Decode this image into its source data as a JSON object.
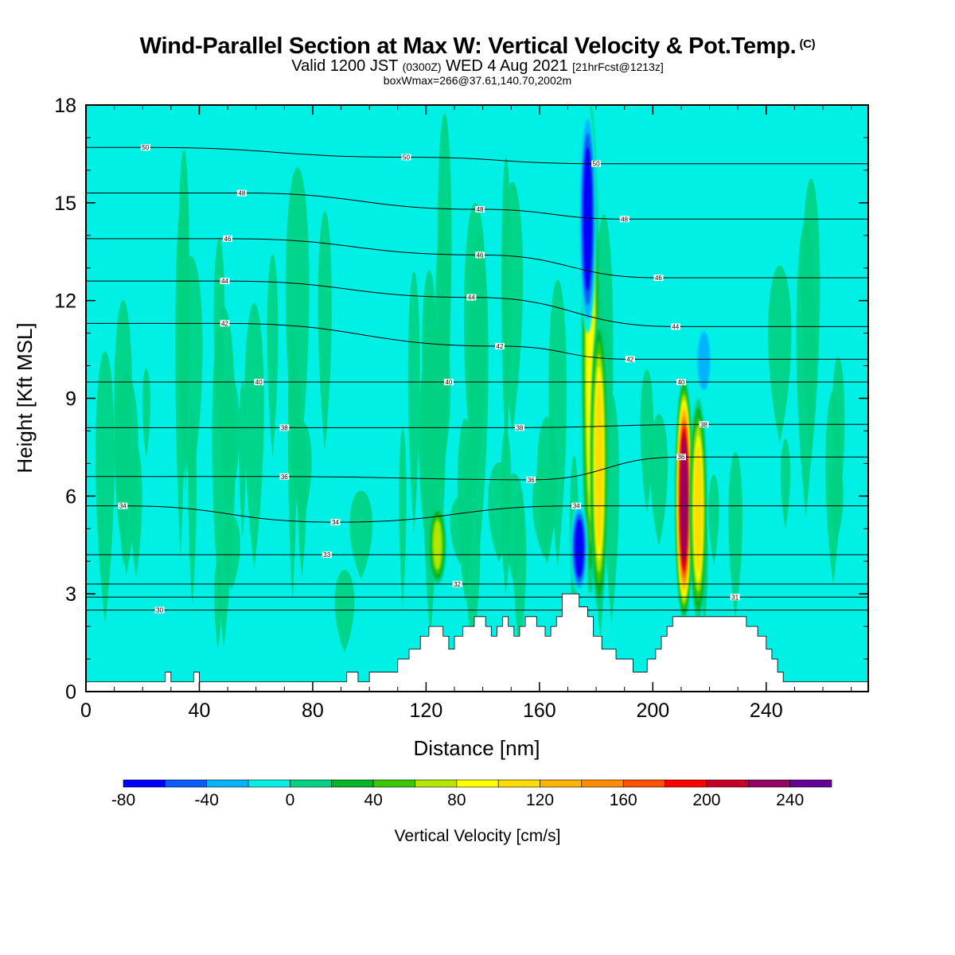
{
  "header": {
    "title": "Wind-Parallel Section at Max W: Vertical Velocity & Pot.Temp.",
    "title_mark": "(C)",
    "valid_prefix": "Valid 1200 JST",
    "valid_utc": "(0300Z)",
    "valid_date": "WED 4 Aug 2021",
    "forecast_info": "[21hrFcst@1213z]",
    "box_info": "boxWmax=266@37.61,140.70,2002m"
  },
  "chart_data": {
    "type": "heatmap",
    "title": "Wind-Parallel Section at Max W: Vertical Velocity & Pot.Temp.",
    "xlabel": "Distance [nm]",
    "ylabel": "Height [Kft MSL]",
    "xlim": [
      0,
      276
    ],
    "ylim": [
      0,
      18
    ],
    "x_ticks": [
      0,
      40,
      80,
      120,
      160,
      200,
      240
    ],
    "y_ticks": [
      0,
      3,
      6,
      9,
      12,
      15,
      18
    ],
    "colorbar": {
      "label": "Vertical Velocity [cm/s]",
      "levels": [
        -80,
        -60,
        -40,
        -20,
        0,
        20,
        40,
        60,
        80,
        100,
        120,
        140,
        160,
        180,
        200,
        220,
        240,
        260
      ],
      "tick_labels": [
        -80,
        -40,
        0,
        40,
        80,
        120,
        160,
        200,
        240
      ],
      "colors": [
        "#0000ff",
        "#0a5cff",
        "#00b4ff",
        "#00f0e6",
        "#00d282",
        "#00b428",
        "#3cc800",
        "#b4e600",
        "#ffff00",
        "#ffdc00",
        "#ffb400",
        "#ff8c00",
        "#ff5000",
        "#ff0000",
        "#c80028",
        "#960064",
        "#640096"
      ]
    },
    "background_value_cm_s": 0,
    "isentrope_labels": [
      {
        "x": 21,
        "y": 16.7,
        "text": "50"
      },
      {
        "x": 113,
        "y": 16.4,
        "text": "50"
      },
      {
        "x": 180,
        "y": 16.2,
        "text": "50"
      },
      {
        "x": 55,
        "y": 15.3,
        "text": "48"
      },
      {
        "x": 139,
        "y": 14.8,
        "text": "48"
      },
      {
        "x": 190,
        "y": 14.5,
        "text": "48"
      },
      {
        "x": 50,
        "y": 13.9,
        "text": "46"
      },
      {
        "x": 139,
        "y": 13.4,
        "text": "46"
      },
      {
        "x": 202,
        "y": 12.7,
        "text": "46"
      },
      {
        "x": 49,
        "y": 12.6,
        "text": "44"
      },
      {
        "x": 136,
        "y": 12.1,
        "text": "44"
      },
      {
        "x": 208,
        "y": 11.2,
        "text": "44"
      },
      {
        "x": 49,
        "y": 11.3,
        "text": "42"
      },
      {
        "x": 146,
        "y": 10.6,
        "text": "42"
      },
      {
        "x": 192,
        "y": 10.2,
        "text": "42"
      },
      {
        "x": 61,
        "y": 9.5,
        "text": "40"
      },
      {
        "x": 128,
        "y": 9.5,
        "text": "40"
      },
      {
        "x": 210,
        "y": 9.5,
        "text": "40"
      },
      {
        "x": 70,
        "y": 8.1,
        "text": "38"
      },
      {
        "x": 153,
        "y": 8.1,
        "text": "38"
      },
      {
        "x": 218,
        "y": 8.2,
        "text": "38"
      },
      {
        "x": 70,
        "y": 6.6,
        "text": "36"
      },
      {
        "x": 157,
        "y": 6.5,
        "text": "36"
      },
      {
        "x": 210,
        "y": 7.2,
        "text": "36"
      },
      {
        "x": 13,
        "y": 5.7,
        "text": "34"
      },
      {
        "x": 88,
        "y": 5.2,
        "text": "34"
      },
      {
        "x": 173,
        "y": 5.7,
        "text": "34"
      },
      {
        "x": 85,
        "y": 4.2,
        "text": "33"
      },
      {
        "x": 131,
        "y": 3.3,
        "text": "32"
      },
      {
        "x": 229,
        "y": 2.9,
        "text": "31"
      },
      {
        "x": 26,
        "y": 2.5,
        "text": "30"
      }
    ],
    "strong_updrafts": [
      {
        "x": 124,
        "y_range": [
          3.3,
          5.7
        ],
        "peak_cm_s": 80
      },
      {
        "x": 178,
        "y_range": [
          3.0,
          18.0
        ],
        "peak_cm_s": 100
      },
      {
        "x": 181,
        "y_range": [
          2.5,
          11.5
        ],
        "peak_cm_s": 120
      },
      {
        "x": 211,
        "y_range": [
          2.2,
          9.6
        ],
        "peak_cm_s": 240
      },
      {
        "x": 216,
        "y_range": [
          2.2,
          9.0
        ],
        "peak_cm_s": 120
      }
    ],
    "downdrafts": [
      {
        "x": 174,
        "y_range": [
          3.0,
          5.8
        ],
        "min_cm_s": -80
      },
      {
        "x": 177,
        "y_range": [
          11.0,
          18.0
        ],
        "min_cm_s": -80
      },
      {
        "x": 218,
        "y_range": [
          9.0,
          11.3
        ],
        "min_cm_s": -40
      }
    ],
    "terrain": [
      [
        0,
        0.3
      ],
      [
        28,
        0.3
      ],
      [
        28,
        0.6
      ],
      [
        30,
        0.6
      ],
      [
        30,
        0.3
      ],
      [
        38,
        0.3
      ],
      [
        38,
        0.6
      ],
      [
        40,
        0.6
      ],
      [
        40,
        0.3
      ],
      [
        92,
        0.3
      ],
      [
        92,
        0.6
      ],
      [
        96,
        0.6
      ],
      [
        96,
        0.3
      ],
      [
        100,
        0.3
      ],
      [
        100,
        0.6
      ],
      [
        110,
        0.6
      ],
      [
        110,
        1.0
      ],
      [
        114,
        1.0
      ],
      [
        114,
        1.3
      ],
      [
        118,
        1.3
      ],
      [
        118,
        1.7
      ],
      [
        121,
        1.7
      ],
      [
        121,
        2.0
      ],
      [
        126,
        2.0
      ],
      [
        126,
        1.7
      ],
      [
        128,
        1.7
      ],
      [
        128,
        1.3
      ],
      [
        130,
        1.3
      ],
      [
        130,
        1.7
      ],
      [
        133,
        1.7
      ],
      [
        133,
        2.0
      ],
      [
        137,
        2.0
      ],
      [
        137,
        2.3
      ],
      [
        141,
        2.3
      ],
      [
        141,
        2.0
      ],
      [
        143,
        2.0
      ],
      [
        143,
        1.7
      ],
      [
        145,
        1.7
      ],
      [
        145,
        2.0
      ],
      [
        147,
        2.0
      ],
      [
        147,
        2.3
      ],
      [
        149,
        2.3
      ],
      [
        149,
        2.0
      ],
      [
        151,
        2.0
      ],
      [
        151,
        1.7
      ],
      [
        153,
        1.7
      ],
      [
        153,
        2.0
      ],
      [
        155,
        2.0
      ],
      [
        155,
        2.3
      ],
      [
        159,
        2.3
      ],
      [
        159,
        2.0
      ],
      [
        162,
        2.0
      ],
      [
        162,
        1.7
      ],
      [
        164,
        1.7
      ],
      [
        164,
        2.0
      ],
      [
        166,
        2.0
      ],
      [
        166,
        2.3
      ],
      [
        168,
        2.3
      ],
      [
        168,
        3.0
      ],
      [
        174,
        3.0
      ],
      [
        174,
        2.6
      ],
      [
        177,
        2.6
      ],
      [
        177,
        2.3
      ],
      [
        179,
        2.3
      ],
      [
        179,
        1.7
      ],
      [
        182,
        1.7
      ],
      [
        182,
        1.3
      ],
      [
        187,
        1.3
      ],
      [
        187,
        1.0
      ],
      [
        193,
        1.0
      ],
      [
        193,
        0.6
      ],
      [
        198,
        0.6
      ],
      [
        198,
        1.0
      ],
      [
        201,
        1.0
      ],
      [
        201,
        1.3
      ],
      [
        203,
        1.3
      ],
      [
        203,
        1.7
      ],
      [
        205,
        1.7
      ],
      [
        205,
        2.0
      ],
      [
        207,
        2.0
      ],
      [
        207,
        2.3
      ],
      [
        233,
        2.3
      ],
      [
        233,
        2.0
      ],
      [
        237,
        2.0
      ],
      [
        237,
        1.7
      ],
      [
        240,
        1.7
      ],
      [
        240,
        1.3
      ],
      [
        242,
        1.3
      ],
      [
        242,
        1.0
      ],
      [
        244,
        1.0
      ],
      [
        244,
        0.6
      ],
      [
        246,
        0.6
      ],
      [
        246,
        0.3
      ],
      [
        276,
        0.3
      ]
    ]
  }
}
